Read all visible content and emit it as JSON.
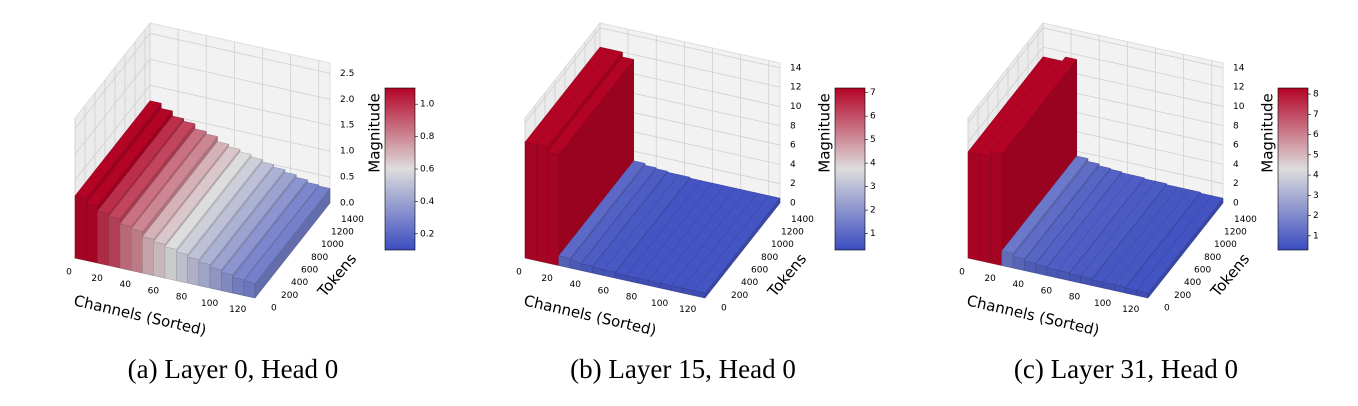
{
  "chart_data": [
    {
      "type": "surface3d",
      "caption": "(a) Layer 0, Head 0",
      "xlabel": "Channels (Sorted)",
      "ylabel": "Tokens",
      "zlabel": "Magnitude",
      "colormap": "coolwarm",
      "x": [
        0,
        8,
        16,
        24,
        32,
        40,
        48,
        56,
        64,
        72,
        80,
        88,
        96,
        104,
        112,
        120
      ],
      "values": [
        1.2,
        1.1,
        1.0,
        0.95,
        0.85,
        0.8,
        0.7,
        0.65,
        0.6,
        0.55,
        0.5,
        0.45,
        0.4,
        0.35,
        0.3,
        0.28
      ],
      "xlim": [
        0,
        128
      ],
      "xticks": [
        0,
        20,
        40,
        60,
        80,
        100,
        120
      ],
      "ylim": [
        0,
        1500
      ],
      "yticks": [
        0,
        200,
        400,
        600,
        800,
        1000,
        1200,
        1400
      ],
      "zlim": [
        0,
        2.7
      ],
      "zticks": [
        {
          "value": 0,
          "label": "0.0"
        },
        0.5,
        {
          "value": 1,
          "label": "1.0"
        },
        1.5,
        {
          "value": 2,
          "label": "2.0"
        },
        2.5
      ],
      "clim": [
        0.1,
        1.1
      ],
      "cticks": [
        0.2,
        0.4,
        0.6,
        0.8,
        {
          "value": 1,
          "label": "1.0"
        }
      ]
    },
    {
      "type": "surface3d",
      "caption": "(b) Layer 15, Head 0",
      "xlabel": "Channels (Sorted)",
      "ylabel": "Tokens",
      "zlabel": "Magnitude",
      "colormap": "coolwarm",
      "x": [
        0,
        8,
        16,
        24,
        32,
        40,
        48,
        56,
        64,
        72,
        80,
        88,
        96,
        104,
        112,
        120
      ],
      "values": [
        12,
        12,
        11.5,
        1,
        0.8,
        0.7,
        0.6,
        0.6,
        0.5,
        0.5,
        0.5,
        0.5,
        0.5,
        0.5,
        0.5,
        0.5
      ],
      "xlim": [
        0,
        128
      ],
      "xticks": [
        0,
        20,
        40,
        60,
        80,
        100,
        120
      ],
      "ylim": [
        0,
        1500
      ],
      "yticks": [
        0,
        200,
        400,
        600,
        800,
        1000,
        1200,
        1400
      ],
      "zlim": [
        0,
        14.5
      ],
      "zticks": [
        0,
        2,
        4,
        6,
        8,
        10,
        12,
        14
      ],
      "clim": [
        0.3,
        7.2
      ],
      "cticks": [
        1,
        2,
        3,
        4,
        5,
        6,
        7
      ]
    },
    {
      "type": "surface3d",
      "caption": "(c) Layer 31, Head 0",
      "xlabel": "Channels (Sorted)",
      "ylabel": "Tokens",
      "zlabel": "Magnitude",
      "colormap": "coolwarm",
      "x": [
        0,
        8,
        16,
        24,
        32,
        40,
        48,
        56,
        64,
        72,
        80,
        88,
        96,
        104,
        112,
        120
      ],
      "values": [
        11,
        11,
        11.5,
        1.5,
        1.2,
        1,
        0.9,
        0.8,
        0.8,
        0.7,
        0.7,
        0.6,
        0.6,
        0.6,
        0.5,
        0.5
      ],
      "xlim": [
        0,
        128
      ],
      "xticks": [
        0,
        20,
        40,
        60,
        80,
        100,
        120
      ],
      "ylim": [
        0,
        1500
      ],
      "yticks": [
        0,
        200,
        400,
        600,
        800,
        1000,
        1200,
        1400
      ],
      "zlim": [
        0,
        14.5
      ],
      "zticks": [
        0,
        2,
        4,
        6,
        8,
        10,
        12,
        14
      ],
      "clim": [
        0.3,
        8.3
      ],
      "cticks": [
        1,
        2,
        3,
        4,
        5,
        6,
        7,
        8
      ]
    }
  ]
}
